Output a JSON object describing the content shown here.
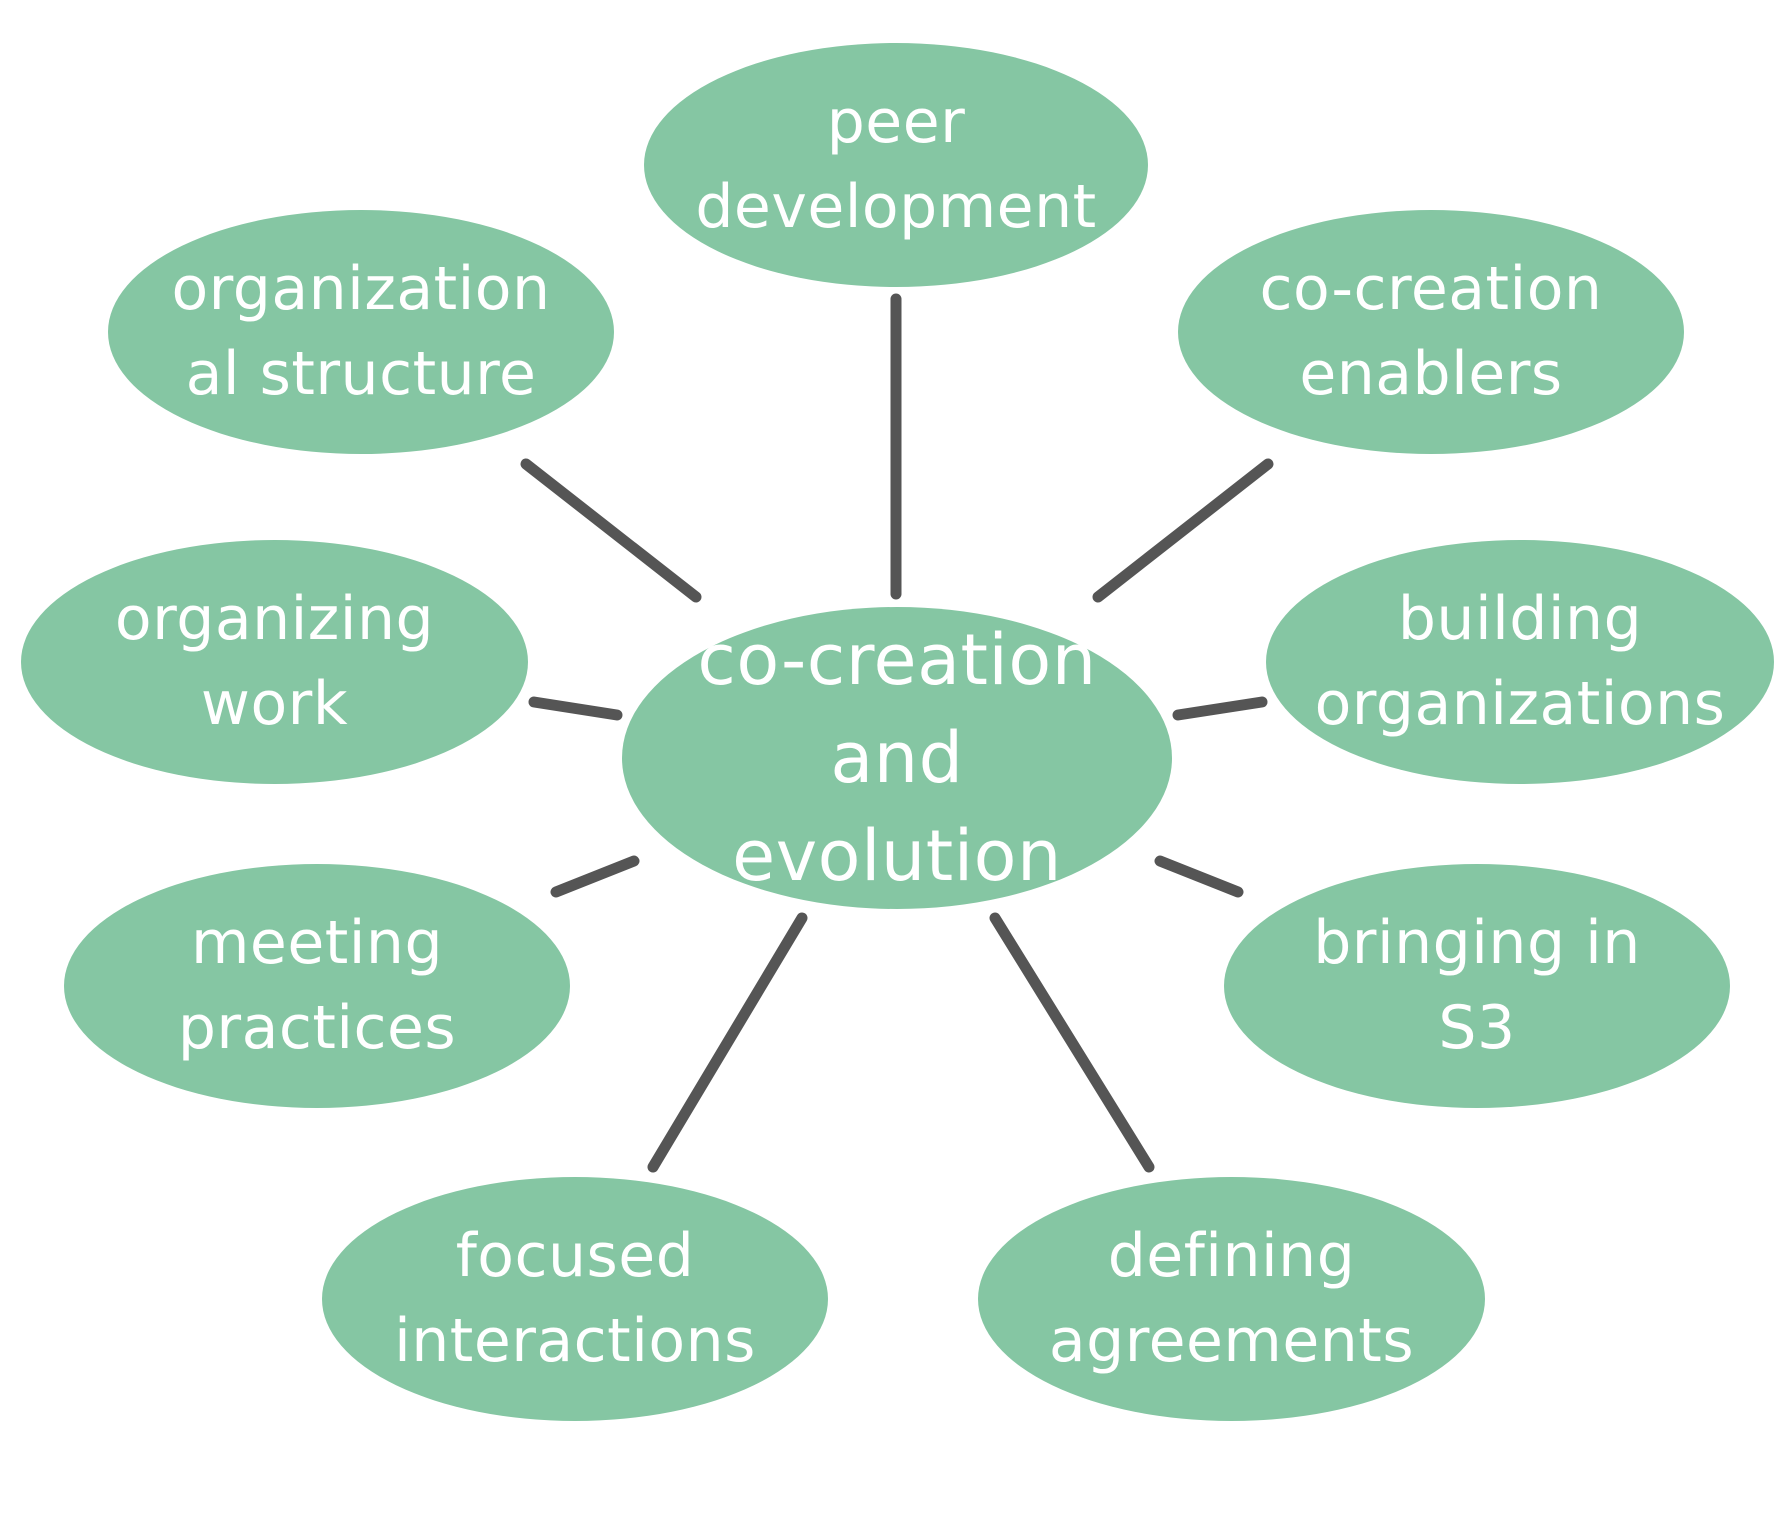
{
  "colors": {
    "node_fill": "#85c6a3",
    "node_text": "#ffffff",
    "connector": "#555555"
  },
  "center": {
    "label": "co-creation and evolution"
  },
  "nodes": {
    "peer_development": "peer development",
    "organizational_structure": "organizational structure",
    "co_creation_enablers": "co-creation enablers",
    "organizing_work": "organizing work",
    "building_organizations": "building organizations",
    "meeting_practices": "meeting practices",
    "bringing_in_s3": "bringing in S3",
    "focused_interactions": "focused interactions",
    "defining_agreements": "defining agreements"
  }
}
